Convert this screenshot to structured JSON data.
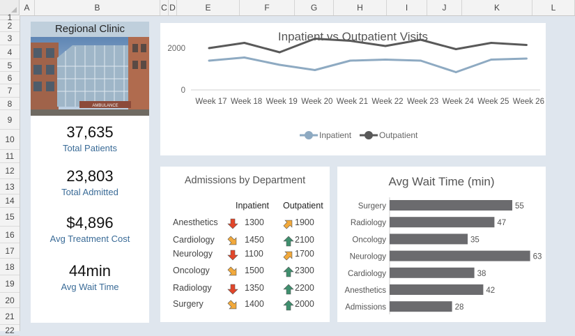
{
  "sheet": {
    "columns": [
      "A",
      "B",
      "C",
      "D",
      "E",
      "F",
      "G",
      "H",
      "I",
      "J",
      "K",
      "L"
    ],
    "rows": [
      "1",
      "2",
      "3",
      "4",
      "5",
      "6",
      "7",
      "8",
      "9",
      "10",
      "11",
      "12",
      "13",
      "14",
      "15",
      "16",
      "17",
      "18",
      "19",
      "20",
      "21",
      "22"
    ]
  },
  "clinic": {
    "title": "Regional Clinic",
    "photo_sign": "AMBULANCE"
  },
  "kpis": [
    {
      "value": "37,635",
      "label": "Total Patients"
    },
    {
      "value": "23,803",
      "label": "Total Admitted"
    },
    {
      "value": "$4,896",
      "label": "Avg Treatment Cost"
    },
    {
      "value": "44min",
      "label": "Avg Wait Time"
    }
  ],
  "admissions": {
    "title": "Admissions by Department",
    "col_inpatient": "Inpatient",
    "col_outpatient": "Outpatient",
    "rows": [
      {
        "dept": "Anesthetics",
        "inpatient": "1300",
        "in_trend": "down",
        "outpatient": "1900",
        "out_trend": "up-right"
      },
      {
        "dept": "Cardiology",
        "inpatient": "1450",
        "in_trend": "down-right",
        "outpatient": "2100",
        "out_trend": "up"
      },
      {
        "dept": "Neurology",
        "inpatient": "1100",
        "in_trend": "down",
        "outpatient": "1700",
        "out_trend": "up-right"
      },
      {
        "dept": "Oncology",
        "inpatient": "1500",
        "in_trend": "down-right",
        "outpatient": "2300",
        "out_trend": "up"
      },
      {
        "dept": "Radiology",
        "inpatient": "1350",
        "in_trend": "down",
        "outpatient": "2200",
        "out_trend": "up"
      },
      {
        "dept": "Surgery",
        "inpatient": "1400",
        "in_trend": "down-right",
        "outpatient": "2000",
        "out_trend": "up"
      }
    ]
  },
  "colors": {
    "inpatient": "#8eaac2",
    "outpatient": "#595959",
    "bar": "#6b6b6e",
    "arrow_down": "#e2462a",
    "arrow_diag": "#f2a93b",
    "arrow_up": "#3f8f6e"
  },
  "chart_data": [
    {
      "type": "line",
      "title": "Inpatient vs Outpatient Visits",
      "categories": [
        "Week 17",
        "Week 18",
        "Week 19",
        "Week 20",
        "Week 21",
        "Week 22",
        "Week 23",
        "Week 24",
        "Week 25",
        "Week 26"
      ],
      "series": [
        {
          "name": "Inpatient",
          "values": [
            1400,
            1550,
            1200,
            950,
            1400,
            1450,
            1400,
            850,
            1450,
            1500
          ]
        },
        {
          "name": "Outpatient",
          "values": [
            2000,
            2250,
            1800,
            2450,
            2350,
            2100,
            2400,
            1950,
            2250,
            2150
          ]
        }
      ],
      "yticks": [
        0,
        2000
      ],
      "ylim": [
        0,
        2600
      ],
      "legend": "bottom"
    },
    {
      "type": "bar",
      "orientation": "horizontal",
      "title": "Avg Wait Time (min)",
      "categories": [
        "Surgery",
        "Radiology",
        "Oncology",
        "Neurology",
        "Cardiology",
        "Anesthetics",
        "Admissions"
      ],
      "values": [
        55,
        47,
        35,
        63,
        38,
        42,
        28
      ],
      "xlim": [
        0,
        65
      ]
    }
  ]
}
